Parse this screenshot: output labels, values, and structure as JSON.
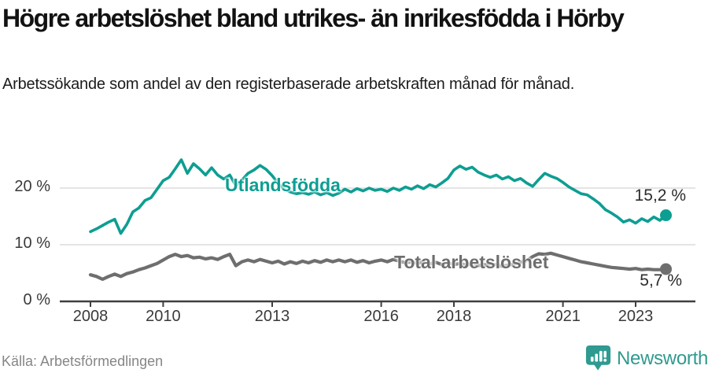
{
  "header": {
    "title": "Högre arbetslöshet bland utrikes- än inrikesfödda i Hörby",
    "subtitle": "Arbetssökande som andel av den registerbaserade arbetskraften månad för månad."
  },
  "footer": {
    "source": "Källa: Arbetsförmedlingen",
    "brand": "Newsworthy"
  },
  "colors": {
    "teal_series": "#0D9E92",
    "gray_series": "#6E6E6E",
    "gridline": "#dcdcdc",
    "axis": "#3f3f3f",
    "brand_teal": "#2F9A90",
    "title_text": "#121212",
    "axis_text": "#3a3a3a",
    "source_text": "#868686"
  },
  "chart_data": {
    "type": "line",
    "title": "Högre arbetslöshet bland utrikes- än inrikesfödda i Hörby",
    "xlabel": "",
    "ylabel": "Arbetssökande som andel av den registerbaserade arbetskraften",
    "grid": "horizontal",
    "legend_position": "inline-labels",
    "x_start": 2008.0,
    "x_step_years": 0.166667,
    "xlim": [
      2007.2,
      2024.6
    ],
    "ylim": [
      0,
      26.5
    ],
    "y_ticks": [
      {
        "v": 0,
        "label": "0 %"
      },
      {
        "v": 10,
        "label": "10 %"
      },
      {
        "v": 20,
        "label": "20 %"
      }
    ],
    "x_ticks": [
      {
        "v": 2008,
        "label": "2008"
      },
      {
        "v": 2010,
        "label": "2010"
      },
      {
        "v": 2013,
        "label": "2013"
      },
      {
        "v": 2016,
        "label": "2016"
      },
      {
        "v": 2018,
        "label": "2018"
      },
      {
        "v": 2021,
        "label": "2021"
      },
      {
        "v": 2023,
        "label": "2023"
      }
    ],
    "series": [
      {
        "name": "Utlandsfödda",
        "color": "#0D9E92",
        "width": 3.6,
        "end_label": "15,2 %",
        "end_value": 15.2,
        "values": [
          12.3,
          12.8,
          13.4,
          14.0,
          14.5,
          12.0,
          13.6,
          15.8,
          16.5,
          17.8,
          18.3,
          19.8,
          21.3,
          21.9,
          23.4,
          25.0,
          22.6,
          24.3,
          23.4,
          22.3,
          23.6,
          22.3,
          21.6,
          22.3,
          20.4,
          21.4,
          22.6,
          23.2,
          24.0,
          23.3,
          22.2,
          20.8,
          19.8,
          19.3,
          19.0,
          19.2,
          18.9,
          19.3,
          18.8,
          19.2,
          18.7,
          19.1,
          19.8,
          19.3,
          19.9,
          19.5,
          20.0,
          19.6,
          19.8,
          19.4,
          20.0,
          19.6,
          20.2,
          19.8,
          20.4,
          19.9,
          20.6,
          20.2,
          20.9,
          21.7,
          23.2,
          23.9,
          23.3,
          23.7,
          22.8,
          22.3,
          21.9,
          22.3,
          21.6,
          22.0,
          21.3,
          21.7,
          20.9,
          20.3,
          21.5,
          22.6,
          22.1,
          21.7,
          21.0,
          20.2,
          19.6,
          19.0,
          18.8,
          18.1,
          17.3,
          16.2,
          15.6,
          14.9,
          14.0,
          14.4,
          13.8,
          14.6,
          14.1,
          14.9,
          14.3,
          15.2
        ]
      },
      {
        "name": "Total arbetslöshet",
        "color": "#6E6E6E",
        "width": 4.2,
        "end_label": "5,7 %",
        "end_value": 5.7,
        "values": [
          4.7,
          4.4,
          3.9,
          4.4,
          4.8,
          4.4,
          4.9,
          5.2,
          5.6,
          5.9,
          6.3,
          6.7,
          7.3,
          7.9,
          8.3,
          7.9,
          8.1,
          7.7,
          7.8,
          7.5,
          7.7,
          7.4,
          7.9,
          8.3,
          6.3,
          7.0,
          7.3,
          7.0,
          7.4,
          7.1,
          6.8,
          7.1,
          6.6,
          7.0,
          6.7,
          7.1,
          6.8,
          7.2,
          6.9,
          7.3,
          7.0,
          7.3,
          7.0,
          7.3,
          6.9,
          7.2,
          6.8,
          7.1,
          7.3,
          7.0,
          7.4,
          7.1,
          6.8,
          7.0,
          6.7,
          7.0,
          6.6,
          6.9,
          6.5,
          6.8,
          6.5,
          6.7,
          6.4,
          6.6,
          6.3,
          6.5,
          6.3,
          6.5,
          6.2,
          6.4,
          6.6,
          6.9,
          7.2,
          7.9,
          8.4,
          8.3,
          8.5,
          8.2,
          7.9,
          7.6,
          7.3,
          7.0,
          6.8,
          6.6,
          6.4,
          6.2,
          6.0,
          5.9,
          5.8,
          5.7,
          5.8,
          5.6,
          5.7,
          5.6,
          5.6,
          5.7
        ]
      }
    ]
  }
}
